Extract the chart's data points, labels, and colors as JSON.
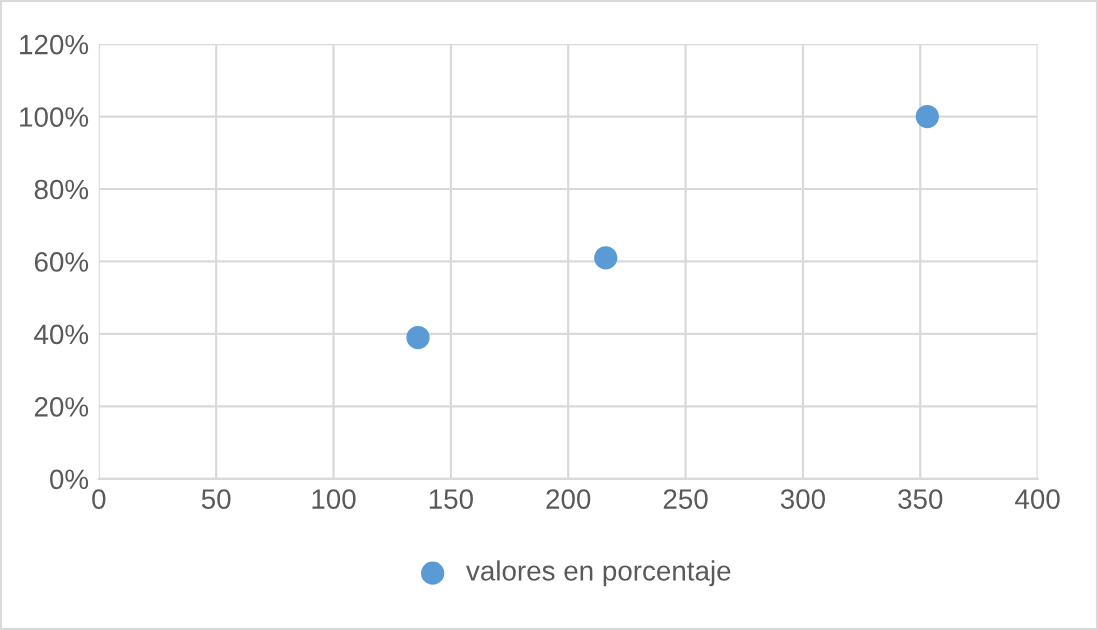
{
  "chart_data": {
    "type": "scatter",
    "series": [
      {
        "name": "valores en porcentaje",
        "color": "#5b9bd5",
        "x": [
          136,
          216,
          353
        ],
        "values": [
          39,
          61,
          100
        ]
      }
    ],
    "xlim": [
      0,
      400
    ],
    "xticks": [
      0,
      50,
      100,
      150,
      200,
      250,
      300,
      350,
      400
    ],
    "ylim": [
      0,
      120
    ],
    "yticks": [
      {
        "value": 0,
        "label": "0%"
      },
      {
        "value": 20,
        "label": "20%"
      },
      {
        "value": 40,
        "label": "40%"
      },
      {
        "value": 60,
        "label": "60%"
      },
      {
        "value": 80,
        "label": "80%"
      },
      {
        "value": 100,
        "label": "100%"
      },
      {
        "value": 120,
        "label": "120%"
      }
    ],
    "grid": true,
    "legend": "bottom",
    "marker": "circle"
  }
}
